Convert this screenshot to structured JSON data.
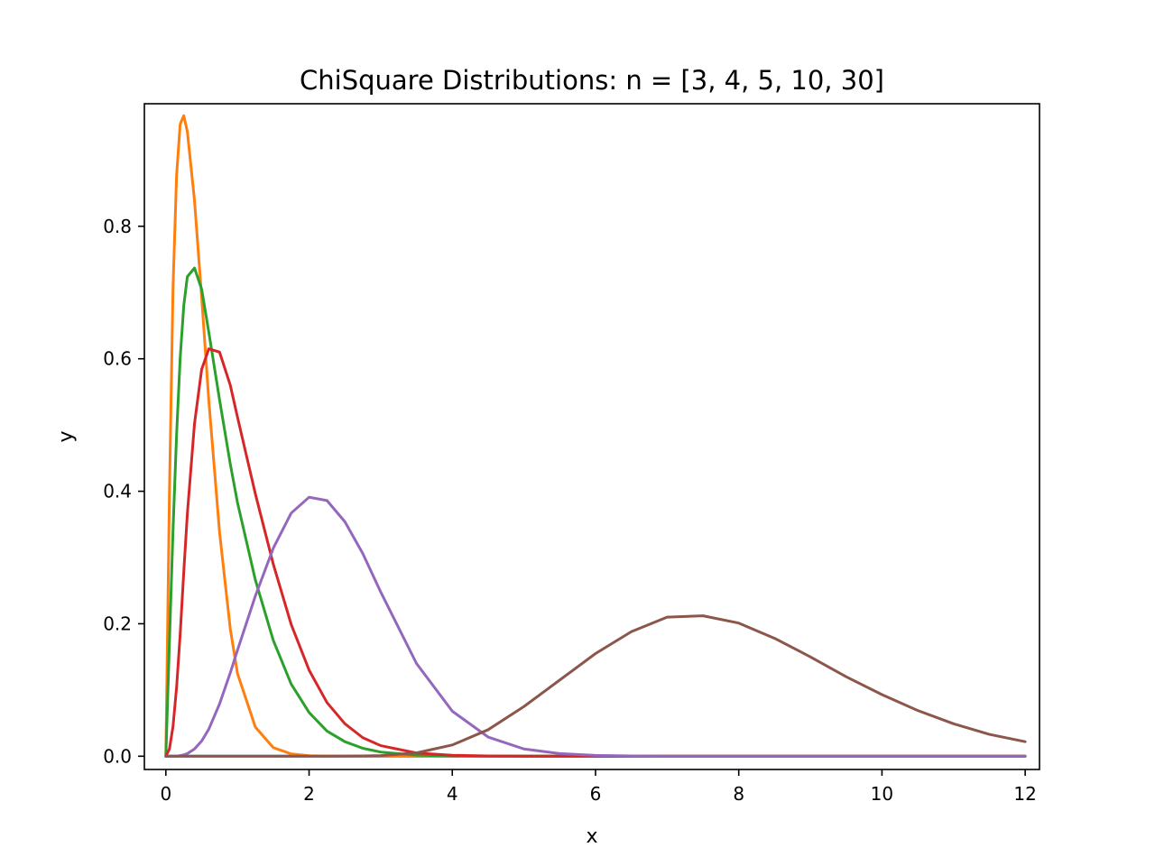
{
  "chart_data": {
    "type": "line",
    "title": "ChiSquare Distributions: n = [3, 4, 5, 10, 30]",
    "xlabel": "x",
    "ylabel": "y",
    "xlim": [
      -0.3,
      12.2
    ],
    "ylim": [
      -0.02,
      0.985
    ],
    "x_ticks": [
      0,
      2,
      4,
      6,
      8,
      10,
      12
    ],
    "x_tick_labels": [
      "0",
      "2",
      "4",
      "6",
      "8",
      "10",
      "12"
    ],
    "y_ticks": [
      0.0,
      0.2,
      0.4,
      0.6,
      0.8
    ],
    "y_tick_labels": [
      "0.0",
      "0.2",
      "0.4",
      "0.6",
      "0.8"
    ],
    "grid": false,
    "legend": "none",
    "x": [
      0.0,
      0.05,
      0.1,
      0.15,
      0.2,
      0.25,
      0.3,
      0.4,
      0.5,
      0.6,
      0.75,
      0.9,
      1.0,
      1.25,
      1.5,
      1.75,
      2.0,
      2.25,
      2.5,
      2.75,
      3.0,
      3.5,
      4.0,
      4.5,
      5.0,
      5.5,
      6.0,
      6.5,
      7.0,
      7.5,
      8.0,
      8.5,
      9.0,
      9.5,
      10.0,
      10.5,
      11.0,
      11.5,
      12.0
    ],
    "series": [
      {
        "color": "#1f77b4",
        "values": [
          0.0,
          0.0,
          0.0,
          0.0,
          0.0,
          0.0,
          0.0,
          0.0,
          0.0,
          0.0,
          0.0,
          0.0,
          0.0,
          0.0,
          0.0,
          0.0,
          0.0,
          0.0,
          0.0,
          0.0,
          0.0,
          0.0,
          0.0,
          0.0,
          0.0,
          0.0,
          0.0,
          0.0,
          0.0,
          0.0,
          0.0,
          0.0,
          0.0,
          0.0,
          0.0,
          0.0,
          0.0,
          0.0,
          0.0
        ]
      },
      {
        "color": "#ff7f0e",
        "values": [
          0.0,
          0.398,
          0.707,
          0.877,
          0.954,
          0.967,
          0.943,
          0.839,
          0.693,
          0.537,
          0.338,
          0.192,
          0.125,
          0.044,
          0.013,
          0.0035,
          0.0008,
          0.0002,
          0.0,
          0.0,
          0.0,
          0.0,
          0.0,
          0.0,
          0.0,
          0.0,
          0.0,
          0.0,
          0.0,
          0.0,
          0.0,
          0.0,
          0.0,
          0.0,
          0.0,
          0.0,
          0.0,
          0.0,
          0.0
        ]
      },
      {
        "color": "#2ca02c",
        "values": [
          0.0,
          0.172,
          0.341,
          0.486,
          0.601,
          0.68,
          0.724,
          0.737,
          0.705,
          0.64,
          0.538,
          0.441,
          0.383,
          0.266,
          0.175,
          0.109,
          0.066,
          0.038,
          0.022,
          0.012,
          0.0063,
          0.0016,
          0.0004,
          0.0001,
          0.0,
          0.0,
          0.0,
          0.0,
          0.0,
          0.0,
          0.0,
          0.0,
          0.0,
          0.0,
          0.0,
          0.0,
          0.0,
          0.0,
          0.0
        ]
      },
      {
        "color": "#d62728",
        "values": [
          0.0,
          0.011,
          0.045,
          0.104,
          0.184,
          0.278,
          0.366,
          0.502,
          0.584,
          0.615,
          0.61,
          0.56,
          0.512,
          0.396,
          0.29,
          0.199,
          0.13,
          0.081,
          0.049,
          0.028,
          0.016,
          0.0049,
          0.0014,
          0.0004,
          0.0001,
          0.0,
          0.0,
          0.0,
          0.0,
          0.0,
          0.0,
          0.0,
          0.0,
          0.0,
          0.0,
          0.0,
          0.0,
          0.0,
          0.0
        ]
      },
      {
        "color": "#9467bd",
        "values": [
          0.0,
          0.0,
          0.0,
          0.0,
          0.001,
          0.002,
          0.004,
          0.011,
          0.023,
          0.041,
          0.079,
          0.126,
          0.16,
          0.242,
          0.314,
          0.367,
          0.391,
          0.386,
          0.354,
          0.306,
          0.248,
          0.14,
          0.068,
          0.029,
          0.011,
          0.004,
          0.0013,
          0.0004,
          0.0001,
          0.0,
          0.0,
          0.0,
          0.0,
          0.0,
          0.0,
          0.0,
          0.0,
          0.0,
          0.0
        ]
      },
      {
        "color": "#8c564b",
        "values": [
          0.0,
          0.0,
          0.0,
          0.0,
          0.0,
          0.0,
          0.0,
          0.0,
          0.0,
          0.0,
          0.0,
          0.0,
          0.0,
          0.0,
          0.0,
          0.0,
          0.0,
          0.0,
          0.0002,
          0.0005,
          0.001,
          0.005,
          0.017,
          0.04,
          0.075,
          0.115,
          0.155,
          0.188,
          0.21,
          0.212,
          0.201,
          0.178,
          0.15,
          0.12,
          0.093,
          0.069,
          0.049,
          0.033,
          0.022
        ]
      }
    ]
  }
}
